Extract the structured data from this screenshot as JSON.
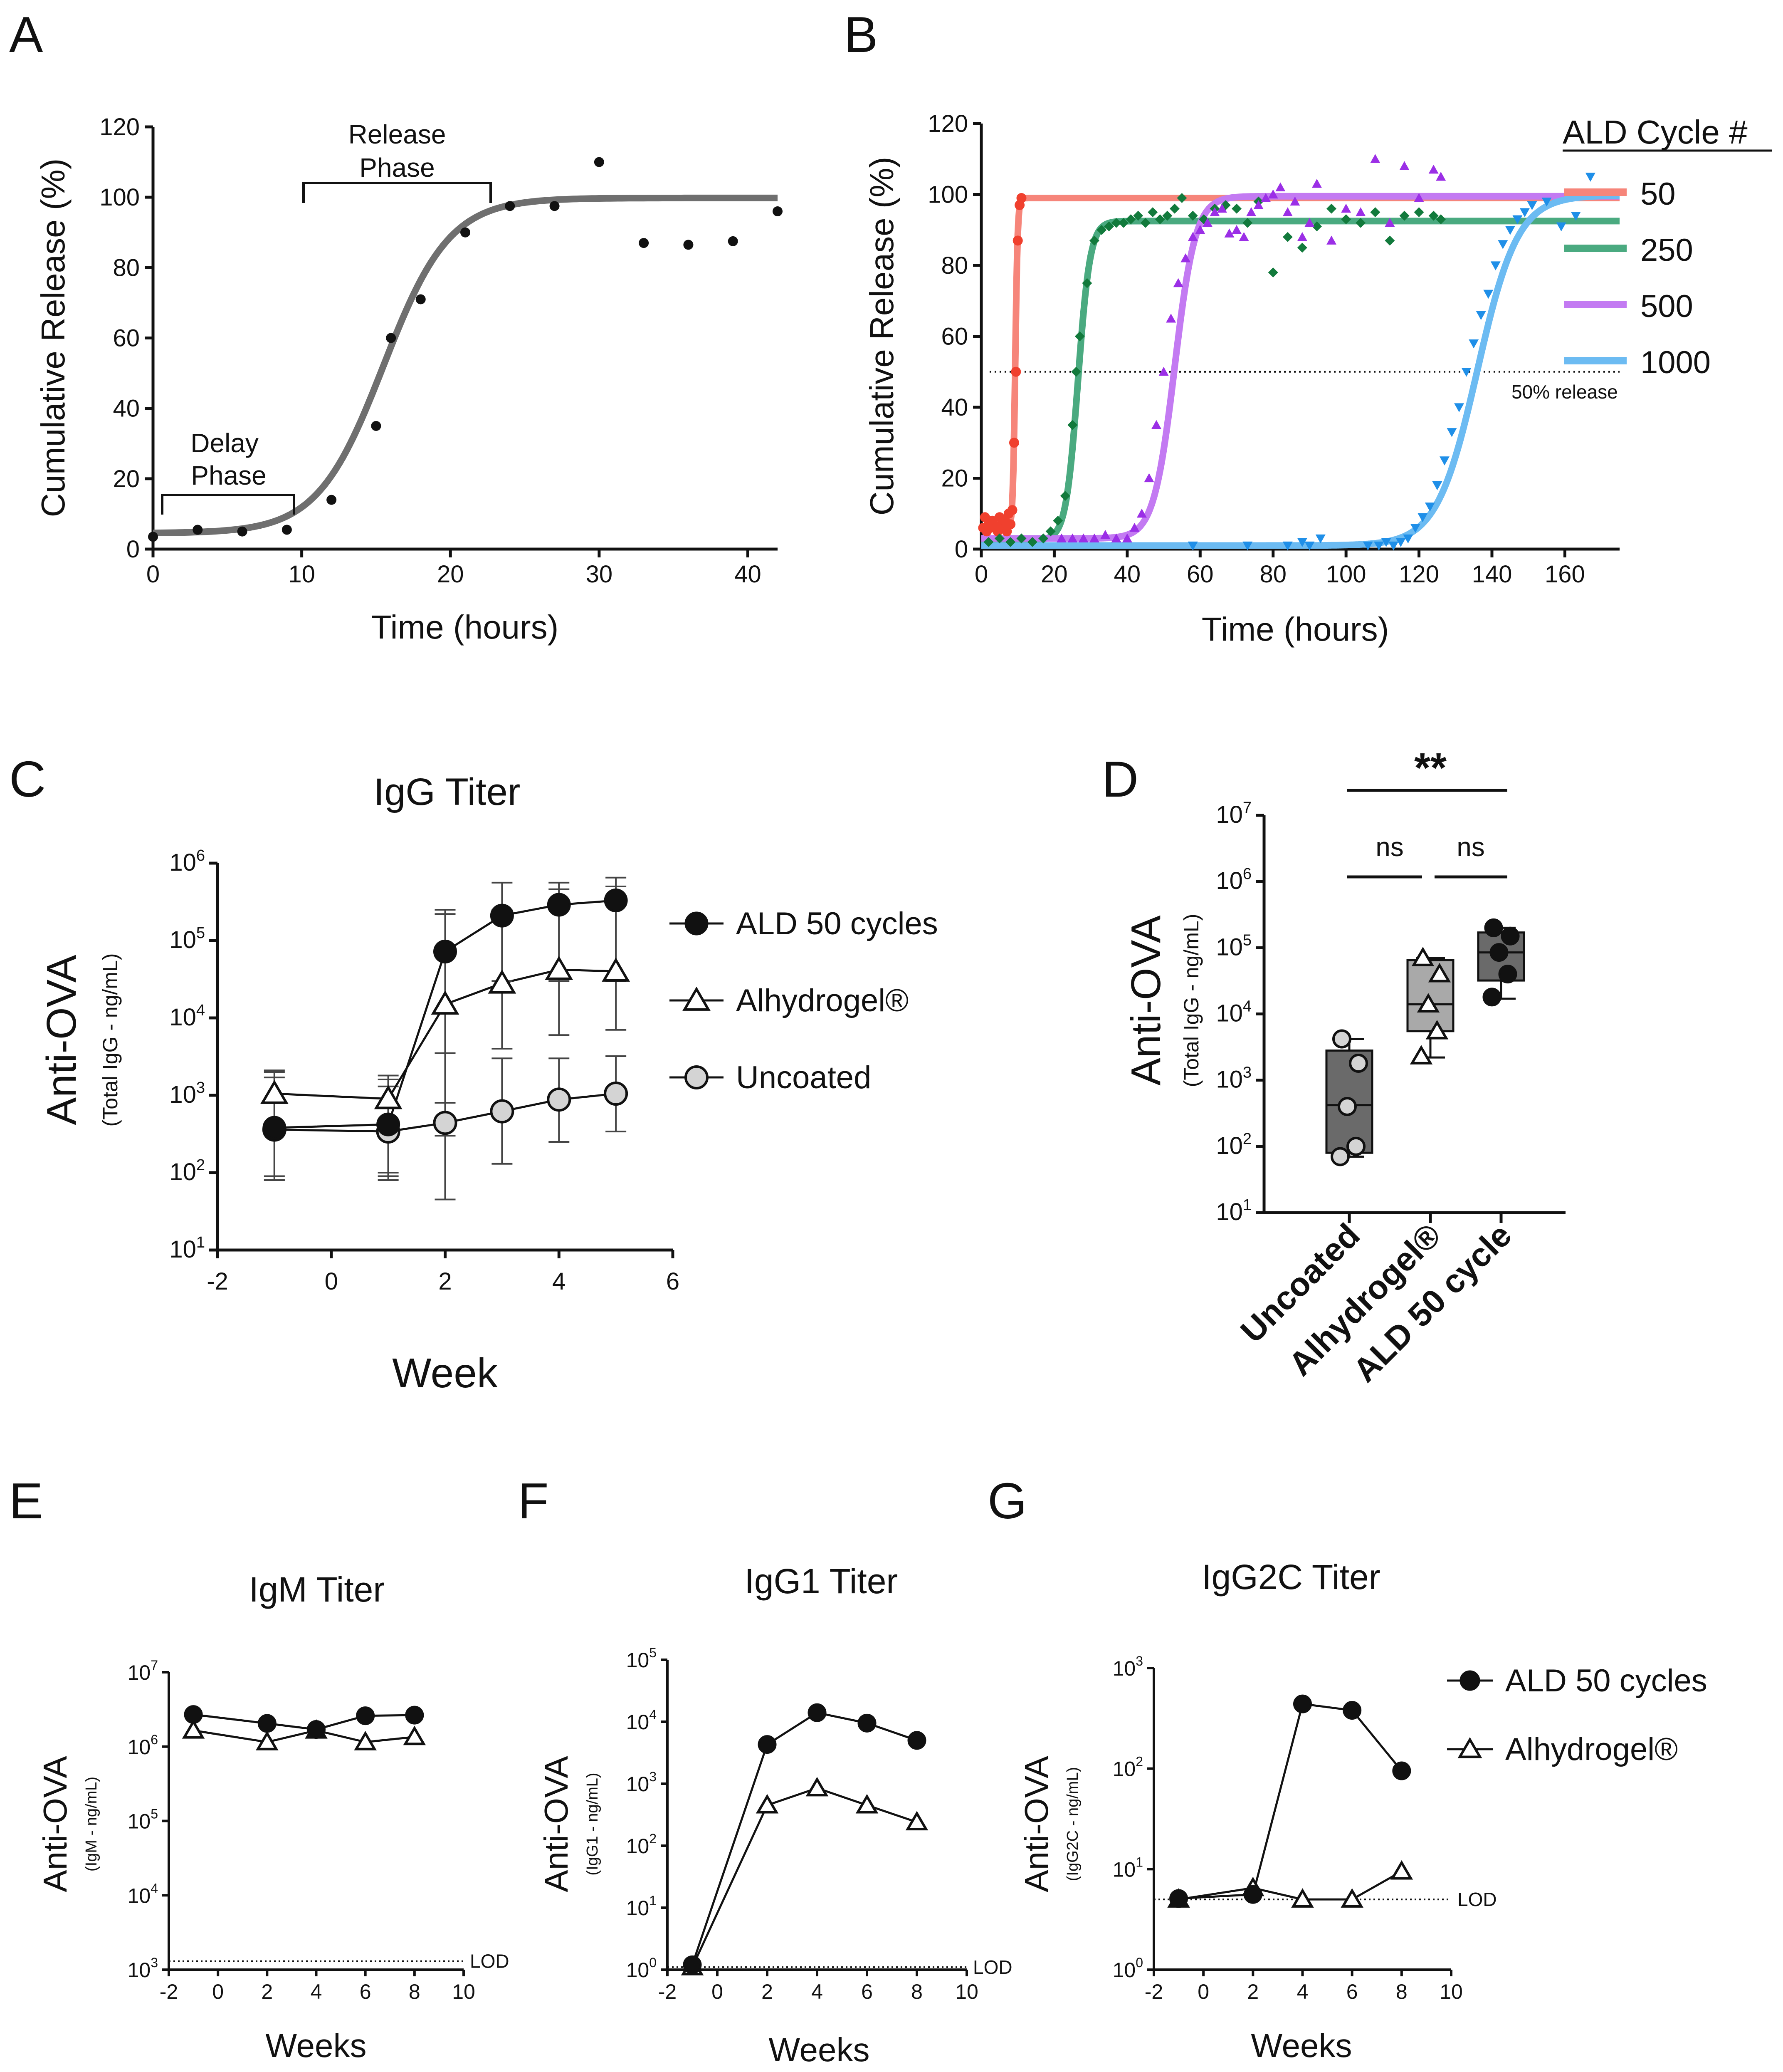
{
  "panels": {
    "A": {
      "letter": "A",
      "ann_release": [
        "Release",
        "Phase"
      ],
      "ann_delay": [
        "Delay",
        "Phase"
      ]
    },
    "B": {
      "letter": "B",
      "legend_title": "ALD Cycle #",
      "ref_label": "50% release"
    },
    "C": {
      "letter": "C"
    },
    "D": {
      "letter": "D",
      "sig_top": "**",
      "sig_left": "ns",
      "sig_right": "ns"
    },
    "E": {
      "letter": "E",
      "lod_label": "LOD"
    },
    "F": {
      "letter": "F",
      "lod_label": "LOD"
    },
    "G": {
      "letter": "G",
      "lod_label": "LOD"
    }
  },
  "colors": {
    "black": "#111111",
    "fit_gray": "#6f6f6f",
    "open_gray": "#d4d4d4",
    "box_dark": "#6a6a6a",
    "box_light": "#a9a9a9"
  },
  "chart_data": [
    {
      "id": "A",
      "type": "scatter",
      "xlabel": "Time (hours)",
      "ylabel": "Cumulative Release (%)",
      "xlim": [
        0,
        42
      ],
      "ylim": [
        0,
        120
      ],
      "xticks": [
        0,
        10,
        20,
        30,
        40
      ],
      "yticks": [
        0,
        20,
        40,
        60,
        80,
        100,
        120
      ],
      "points": {
        "x": [
          0,
          3,
          6,
          9,
          12,
          15,
          16,
          18,
          21,
          24,
          27,
          30,
          33,
          36,
          39,
          42
        ],
        "y": [
          3.5,
          5.5,
          5,
          5.5,
          14,
          35,
          60,
          71,
          90,
          97.5,
          97.5,
          110,
          87,
          86.5,
          87.5,
          96
        ]
      },
      "fit": {
        "bottom": 4.5,
        "top": 99.8,
        "x50": 15.5,
        "slope": 0.45
      }
    },
    {
      "id": "B",
      "type": "scatter",
      "xlabel": "Time (hours)",
      "ylabel": "Cumulative Release (%)",
      "xlim": [
        0,
        175
      ],
      "ylim": [
        0,
        120
      ],
      "xticks": [
        0,
        20,
        40,
        60,
        80,
        100,
        120,
        140,
        160
      ],
      "yticks": [
        0,
        20,
        40,
        60,
        80,
        100,
        120
      ],
      "reference_y": 50,
      "series": [
        {
          "name": "50",
          "color": "#f0402e",
          "line_color": "#f6857a",
          "marker": "circle",
          "x": [
            0.5,
            1,
            1.5,
            2,
            2.5,
            3,
            4,
            4.5,
            5,
            5.5,
            6,
            6.5,
            7,
            7.5,
            8,
            8.5,
            9,
            9.5,
            10,
            10.5,
            11
          ],
          "y": [
            6,
            9,
            5,
            7,
            6,
            8,
            6,
            5,
            9,
            7,
            6,
            8,
            5,
            10,
            7,
            11,
            30,
            50,
            87,
            97,
            99
          ],
          "fit": {
            "bottom": 6,
            "top": 99,
            "x50": 9.3,
            "slope": 3
          }
        },
        {
          "name": "250",
          "color": "#127a3c",
          "line_color": "#4aaa80",
          "marker": "diamond",
          "x": [
            2,
            5,
            8,
            11,
            14,
            17,
            19,
            21,
            23,
            25,
            26,
            27,
            29,
            31,
            33,
            35,
            37,
            39,
            41,
            43,
            45,
            47,
            49,
            51,
            53,
            55,
            58,
            61,
            64,
            67,
            70,
            73,
            76,
            80,
            84,
            88,
            92,
            96,
            100,
            104,
            108,
            112,
            116,
            120,
            124,
            126
          ],
          "y": [
            2,
            3,
            2,
            3,
            2,
            3,
            5,
            8,
            15,
            35,
            50,
            60,
            75,
            87,
            90,
            91,
            92,
            92,
            93,
            94,
            92,
            95,
            93,
            94,
            96,
            99,
            94,
            93,
            96,
            97,
            96,
            92,
            98,
            78,
            88,
            85,
            91,
            96,
            93,
            92,
            95,
            87,
            94,
            95,
            94,
            93
          ],
          "fit": {
            "bottom": 2.5,
            "top": 92.5,
            "x50": 26.5,
            "slope": 0.6
          }
        },
        {
          "name": "500",
          "color": "#9b2fe6",
          "line_color": "#c37af2",
          "marker": "triangle-up",
          "x": [
            22,
            25,
            28,
            31,
            34,
            37,
            40,
            42,
            44,
            46,
            48,
            50,
            52,
            54,
            56,
            58,
            60,
            62,
            64,
            66,
            68,
            70,
            72,
            74,
            76,
            78,
            80,
            82,
            84,
            86,
            88,
            90,
            92,
            96,
            100,
            104,
            108,
            112,
            116,
            120,
            124,
            126
          ],
          "y": [
            3,
            3,
            3,
            3,
            4,
            3,
            3,
            6,
            10,
            20,
            35,
            50,
            65,
            75,
            82,
            88,
            90,
            92,
            95,
            96,
            89,
            90,
            88,
            95,
            97,
            99,
            100,
            102,
            95,
            98,
            88,
            92,
            103,
            87,
            96,
            95,
            110,
            92,
            108,
            99,
            107,
            105
          ],
          "fit": {
            "bottom": 3,
            "top": 99.5,
            "x50": 53,
            "slope": 0.35
          }
        },
        {
          "name": "1000",
          "color": "#1f8fe8",
          "line_color": "#6cbbf2",
          "marker": "triangle-down",
          "x": [
            58,
            73,
            84,
            88,
            90,
            93,
            106,
            109,
            111,
            113,
            115,
            117,
            119,
            121,
            123,
            125,
            127,
            129,
            131,
            133,
            135,
            137,
            139,
            141,
            143,
            145,
            147,
            149,
            151,
            155,
            159,
            163,
            167
          ],
          "y": [
            1,
            1,
            1,
            2,
            1,
            3,
            1,
            1,
            2,
            1,
            2,
            3,
            6,
            9,
            12,
            18,
            25,
            33,
            40,
            50,
            58,
            66,
            72,
            80,
            86,
            90,
            93,
            95,
            97,
            98,
            91,
            94,
            105
          ],
          "fit": {
            "bottom": 1,
            "top": 99.8,
            "x50": 136,
            "slope": 0.18
          }
        }
      ]
    },
    {
      "id": "C",
      "type": "line",
      "title": "IgG Titer",
      "xlabel": "Week",
      "ylabel": "Anti-OVA",
      "ysublabel": "(Total IgG - ng/mL)",
      "xlim": [
        -2,
        6
      ],
      "yscale": "log",
      "ylim_exp": [
        1,
        6
      ],
      "xticks": [
        -2,
        0,
        2,
        4,
        6
      ],
      "ytick_exps": [
        1,
        2,
        3,
        4,
        5,
        6
      ],
      "series": [
        {
          "name": "ALD 50 cycles",
          "marker": "filled-circle",
          "x": [
            -1,
            1,
            2,
            3,
            4,
            5
          ],
          "y": [
            380,
            420,
            72000,
            210000,
            290000,
            330000
          ],
          "err_lo": [
            90,
            90,
            800,
            30000,
            30000,
            30000
          ],
          "err_hi": [
            2100,
            1800,
            250000,
            560000,
            560000,
            650000
          ]
        },
        {
          "name": "Alhydrogel®",
          "marker": "open-triangle",
          "x": [
            -1,
            1,
            2,
            3,
            4,
            5
          ],
          "y": [
            1050,
            900,
            15000,
            28000,
            42000,
            40000
          ],
          "err_lo": [
            80,
            80,
            300,
            4000,
            6000,
            7000
          ],
          "err_hi": [
            2000,
            1600,
            220000,
            250000,
            460000,
            500000
          ]
        },
        {
          "name": "Uncoated",
          "marker": "gray-circle",
          "x": [
            -1,
            1,
            2,
            3,
            4,
            5
          ],
          "y": [
            360,
            340,
            440,
            620,
            880,
            1050
          ],
          "err_lo": [
            80,
            100,
            45,
            130,
            250,
            340
          ],
          "err_hi": [
            1700,
            1300,
            3500,
            3000,
            3000,
            3200
          ]
        }
      ]
    },
    {
      "id": "D",
      "type": "box",
      "ylabel": "Anti-OVA",
      "ysublabel": "(Total IgG - ng/mL)",
      "yscale": "log",
      "ylim_exp": [
        1,
        7
      ],
      "ytick_exps": [
        1,
        2,
        3,
        4,
        5,
        6,
        7
      ],
      "categories": [
        "Uncoated",
        "Alhydrogel®",
        "ALD 50 cycle"
      ],
      "boxes": [
        {
          "min": 70,
          "q1": 80,
          "median": 420,
          "q3": 2800,
          "max": 4200,
          "fill": "#6a6a6a",
          "marker": "gray-circle",
          "points": [
            4200,
            1800,
            400,
            100,
            70
          ]
        },
        {
          "min": 2200,
          "q1": 5500,
          "median": 14000,
          "q3": 65000,
          "max": 70000,
          "fill": "#a9a9a9",
          "marker": "open-triangle",
          "points": [
            70000,
            40000,
            14000,
            5500,
            2300
          ]
        },
        {
          "min": 17000,
          "q1": 32000,
          "median": 85000,
          "q3": 170000,
          "max": 200000,
          "fill": "#6a6a6a",
          "marker": "filled-circle",
          "points": [
            200000,
            150000,
            85000,
            40000,
            18000
          ]
        }
      ]
    },
    {
      "id": "E",
      "type": "line",
      "title": "IgM Titer",
      "xlabel": "Weeks",
      "ylabel": "Anti-OVA",
      "ysublabel": "(IgM - ng/mL)",
      "xlim": [
        -2,
        10
      ],
      "yscale": "log",
      "ylim_exp": [
        3,
        7
      ],
      "xticks": [
        -2,
        0,
        2,
        4,
        6,
        8,
        10
      ],
      "ytick_exps": [
        3,
        4,
        5,
        6,
        7
      ],
      "lod": 1300,
      "series": [
        {
          "name": "ALD 50 cycles",
          "marker": "filled-circle",
          "x": [
            -1,
            2,
            4,
            6,
            8
          ],
          "y": [
            2700000,
            2050000,
            1700000,
            2600000,
            2650000
          ]
        },
        {
          "name": "Alhydrogel®",
          "marker": "open-triangle",
          "x": [
            -1,
            2,
            4,
            6,
            8
          ],
          "y": [
            1650000,
            1150000,
            1650000,
            1150000,
            1350000
          ]
        }
      ]
    },
    {
      "id": "F",
      "type": "line",
      "title": "IgG1 Titer",
      "xlabel": "Weeks",
      "ylabel": "Anti-OVA",
      "ysublabel": "(IgG1 - ng/mL)",
      "xlim": [
        -2,
        10
      ],
      "yscale": "log",
      "ylim_exp": [
        0,
        5
      ],
      "xticks": [
        -2,
        0,
        2,
        4,
        6,
        8,
        10
      ],
      "ytick_exps": [
        0,
        1,
        2,
        3,
        4,
        5
      ],
      "lod": 1.1,
      "series": [
        {
          "name": "ALD 50 cycles",
          "marker": "filled-circle",
          "x": [
            -1,
            2,
            4,
            6,
            8
          ],
          "y": [
            1.2,
            4300,
            14000,
            9500,
            5000
          ]
        },
        {
          "name": "Alhydrogel®",
          "marker": "open-triangle",
          "x": [
            -1,
            2,
            4,
            6,
            8
          ],
          "y": [
            1.1,
            450,
            850,
            450,
            240
          ]
        }
      ]
    },
    {
      "id": "G",
      "type": "line",
      "title": "IgG2C Titer",
      "xlabel": "Weeks",
      "ylabel": "Anti-OVA",
      "ysublabel": "(IgG2C - ng/mL)",
      "xlim": [
        -2,
        10
      ],
      "yscale": "log",
      "ylim_exp": [
        0,
        3
      ],
      "xticks": [
        -2,
        0,
        2,
        4,
        6,
        8,
        10
      ],
      "ytick_exps": [
        0,
        1,
        2,
        3
      ],
      "lod": 5,
      "series": [
        {
          "name": "ALD 50 cycles",
          "marker": "filled-circle",
          "x": [
            -1,
            2,
            4,
            6,
            8
          ],
          "y": [
            5.1,
            5.6,
            440,
            380,
            95
          ]
        },
        {
          "name": "Alhydrogel®",
          "marker": "open-triangle",
          "x": [
            -1,
            2,
            4,
            6,
            8
          ],
          "y": [
            5.0,
            6.5,
            5.0,
            5.0,
            9.5
          ]
        }
      ]
    }
  ]
}
